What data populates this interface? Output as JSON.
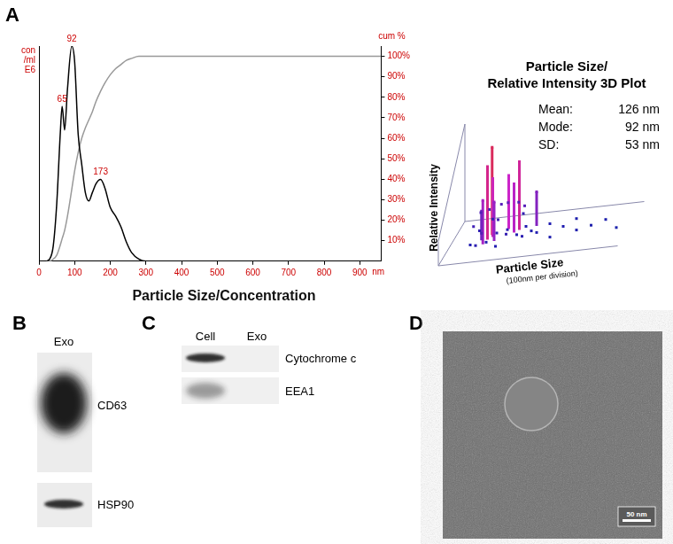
{
  "chart_data": {
    "type": "line",
    "title": "Particle Size/Concentration",
    "xlabel": "nm",
    "ylabel": [
      "con",
      "/ml",
      "E6"
    ],
    "y2label": "cum %",
    "x": [
      20,
      30,
      40,
      50,
      60,
      65,
      72,
      80,
      92,
      100,
      110,
      120,
      130,
      140,
      150,
      160,
      173,
      185,
      200,
      215,
      230,
      245,
      260,
      280,
      300,
      400,
      960
    ],
    "series": [
      {
        "color": "#000000",
        "values": [
          0,
          1,
          7,
          27,
          60,
          72,
          61,
          80,
          100,
          93,
          59,
          45,
          32,
          28,
          32,
          36,
          38,
          34,
          25,
          21,
          16,
          9,
          4,
          1,
          0,
          0,
          0
        ]
      },
      {
        "color": "#999999",
        "axis": "y2",
        "values": [
          0,
          0,
          1,
          3,
          8,
          11,
          15,
          22,
          35,
          44,
          53,
          60,
          65,
          69,
          73,
          78,
          83,
          87,
          91,
          94,
          96,
          98,
          99,
          100,
          100,
          100,
          100
        ]
      }
    ],
    "annotations": [
      {
        "x": 65,
        "label": "65"
      },
      {
        "x": 92,
        "label": "92"
      },
      {
        "x": 173,
        "label": "173"
      }
    ],
    "xlim": [
      0,
      960
    ],
    "xticks": [
      0,
      100,
      200,
      300,
      400,
      500,
      600,
      700,
      800,
      900
    ],
    "ylim": [
      0,
      100
    ],
    "yticks": [],
    "y2lim": [
      0,
      105
    ],
    "y2ticks": [
      {
        "value": 10,
        "label": "10%"
      },
      {
        "value": 20,
        "label": "20%"
      },
      {
        "value": 30,
        "label": "30%"
      },
      {
        "value": 40,
        "label": "40%"
      },
      {
        "value": 50,
        "label": "50%"
      },
      {
        "value": 60,
        "label": "60%"
      },
      {
        "value": 70,
        "label": "70%"
      },
      {
        "value": 80,
        "label": "80%"
      },
      {
        "value": 90,
        "label": "90%"
      },
      {
        "value": 100,
        "label": "100%"
      }
    ],
    "grid": false
  },
  "panel_letters": [
    "A",
    "B",
    "C",
    "D"
  ],
  "plot_3d": {
    "title": [
      "Particle Size/",
      "Relative Intensity 3D Plot"
    ],
    "stats": [
      {
        "label": "Mean:",
        "value": "126 nm"
      },
      {
        "label": "Mode:",
        "value": "92 nm"
      },
      {
        "label": "SD:",
        "value": "53 nm"
      }
    ],
    "z_label": "Relative Intensity",
    "x_label": "Particle Size",
    "x_note": "(100nm per division)",
    "points": [
      [
        90,
        0.5,
        0.75
      ],
      [
        95,
        0.6,
        0.9
      ],
      [
        100,
        0.55,
        0.6
      ],
      [
        130,
        0.7,
        0.55
      ],
      [
        150,
        0.6,
        0.5
      ],
      [
        160,
        0.65,
        0.7
      ],
      [
        85,
        0.4,
        0.45
      ],
      [
        110,
        0.45,
        0.4
      ],
      [
        200,
        0.7,
        0.35
      ],
      [
        75,
        0.5,
        0.3
      ],
      [
        60,
        0.3,
        0.05
      ],
      [
        70,
        0.5,
        0.1
      ],
      [
        80,
        0.2,
        0.08
      ],
      [
        90,
        0.7,
        0.12
      ],
      [
        100,
        0.3,
        0.06
      ],
      [
        110,
        0.6,
        0.15
      ],
      [
        120,
        0.4,
        0.1
      ],
      [
        130,
        0.2,
        0.05
      ],
      [
        140,
        0.5,
        0.08
      ],
      [
        150,
        0.3,
        0.12
      ],
      [
        160,
        0.8,
        0.1
      ],
      [
        170,
        0.4,
        0.06
      ],
      [
        180,
        0.6,
        0.05
      ],
      [
        190,
        0.3,
        0.08
      ],
      [
        200,
        0.5,
        0.04
      ],
      [
        220,
        0.4,
        0.06
      ],
      [
        240,
        0.6,
        0.05
      ],
      [
        260,
        0.3,
        0.04
      ],
      [
        280,
        0.5,
        0.05
      ],
      [
        300,
        0.7,
        0.03
      ],
      [
        320,
        0.4,
        0.04
      ],
      [
        350,
        0.5,
        0.03
      ],
      [
        380,
        0.6,
        0.03
      ],
      [
        420,
        0.4,
        0.02
      ],
      [
        60,
        0.7,
        0.2
      ],
      [
        75,
        0.8,
        0.18
      ],
      [
        95,
        0.2,
        0.2
      ],
      [
        105,
        0.8,
        0.22
      ],
      [
        125,
        0.75,
        0.25
      ],
      [
        145,
        0.85,
        0.2
      ],
      [
        170,
        0.7,
        0.22
      ],
      [
        55,
        0.5,
        0.15
      ]
    ]
  },
  "panel_b": {
    "lanes": [
      "Exo"
    ],
    "rows": [
      {
        "label": "CD63",
        "signal": [
          1
        ]
      },
      {
        "label": "HSP90",
        "signal": [
          0.9
        ]
      }
    ]
  },
  "panel_c": {
    "lanes": [
      "Cell",
      "Exo"
    ],
    "rows": [
      {
        "label": "Cytochrome c",
        "signal": [
          0.9,
          0
        ]
      },
      {
        "label": "EEA1",
        "signal": [
          0.4,
          0
        ]
      }
    ]
  },
  "panel_d": {
    "scale_bar": "50 nm"
  }
}
